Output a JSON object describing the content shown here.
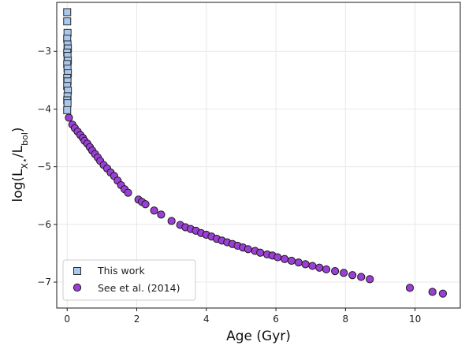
{
  "chart_data": {
    "type": "scatter",
    "xlabel": "Age (Gyr)",
    "ylabel": "log(L",
    "ylabel_sub1": "X⋆",
    "ylabel_mid": "/L",
    "ylabel_sub2": "bol",
    "ylabel_end": ")",
    "xlim": [
      -0.3,
      11.3
    ],
    "ylim": [
      -7.45,
      -2.15
    ],
    "xticks": [
      0,
      2,
      4,
      6,
      8,
      10
    ],
    "yticks": [
      -3,
      -4,
      -5,
      -6,
      -7
    ],
    "xtick_labels": [
      "0",
      "2",
      "4",
      "6",
      "8",
      "10"
    ],
    "ytick_labels": [
      "−3",
      "−4",
      "−5",
      "−6",
      "−7"
    ],
    "grid": true,
    "legend_position": "lower-left",
    "series": [
      {
        "name": "This work",
        "marker": "square",
        "color": "#a9c8ee",
        "edge_color": "#2a2a2a",
        "points": [
          [
            0.0,
            -2.32
          ],
          [
            0.0,
            -2.48
          ],
          [
            0.01,
            -2.68
          ],
          [
            0.0,
            -2.78
          ],
          [
            0.01,
            -2.88
          ],
          [
            0.02,
            -2.95
          ],
          [
            0.0,
            -3.02
          ],
          [
            0.01,
            -3.08
          ],
          [
            0.02,
            -3.16
          ],
          [
            0.0,
            -3.22
          ],
          [
            0.01,
            -3.3
          ],
          [
            0.02,
            -3.38
          ],
          [
            0.0,
            -3.46
          ],
          [
            0.01,
            -3.52
          ],
          [
            0.0,
            -3.6
          ],
          [
            0.02,
            -3.68
          ],
          [
            0.01,
            -3.78
          ],
          [
            0.0,
            -3.85
          ],
          [
            0.01,
            -3.9
          ],
          [
            0.0,
            -4.02
          ]
        ]
      },
      {
        "name": "See et al. (2014)",
        "marker": "circle",
        "color": "#9b3fd6",
        "edge_color": "#1a1a1a",
        "points": [
          [
            0.05,
            -4.15
          ],
          [
            0.15,
            -4.27
          ],
          [
            0.22,
            -4.33
          ],
          [
            0.3,
            -4.39
          ],
          [
            0.38,
            -4.45
          ],
          [
            0.45,
            -4.5
          ],
          [
            0.5,
            -4.55
          ],
          [
            0.58,
            -4.6
          ],
          [
            0.65,
            -4.66
          ],
          [
            0.72,
            -4.72
          ],
          [
            0.8,
            -4.78
          ],
          [
            0.88,
            -4.84
          ],
          [
            0.95,
            -4.9
          ],
          [
            1.05,
            -4.97
          ],
          [
            1.15,
            -5.03
          ],
          [
            1.25,
            -5.1
          ],
          [
            1.35,
            -5.16
          ],
          [
            1.45,
            -5.24
          ],
          [
            1.55,
            -5.32
          ],
          [
            1.65,
            -5.39
          ],
          [
            1.75,
            -5.45
          ],
          [
            2.05,
            -5.57
          ],
          [
            2.15,
            -5.61
          ],
          [
            2.25,
            -5.65
          ],
          [
            2.5,
            -5.76
          ],
          [
            2.7,
            -5.83
          ],
          [
            3.0,
            -5.94
          ],
          [
            3.25,
            -6.01
          ],
          [
            3.4,
            -6.05
          ],
          [
            3.55,
            -6.08
          ],
          [
            3.7,
            -6.11
          ],
          [
            3.85,
            -6.15
          ],
          [
            4.0,
            -6.18
          ],
          [
            4.15,
            -6.21
          ],
          [
            4.3,
            -6.25
          ],
          [
            4.45,
            -6.28
          ],
          [
            4.6,
            -6.31
          ],
          [
            4.75,
            -6.34
          ],
          [
            4.9,
            -6.37
          ],
          [
            5.05,
            -6.4
          ],
          [
            5.2,
            -6.43
          ],
          [
            5.4,
            -6.46
          ],
          [
            5.55,
            -6.49
          ],
          [
            5.75,
            -6.52
          ],
          [
            5.9,
            -6.54
          ],
          [
            6.05,
            -6.57
          ],
          [
            6.25,
            -6.6
          ],
          [
            6.45,
            -6.63
          ],
          [
            6.65,
            -6.66
          ],
          [
            6.85,
            -6.69
          ],
          [
            7.05,
            -6.72
          ],
          [
            7.25,
            -6.75
          ],
          [
            7.45,
            -6.78
          ],
          [
            7.7,
            -6.81
          ],
          [
            7.95,
            -6.84
          ],
          [
            8.2,
            -6.88
          ],
          [
            8.45,
            -6.91
          ],
          [
            8.7,
            -6.95
          ],
          [
            9.85,
            -7.1
          ],
          [
            10.5,
            -7.17
          ],
          [
            10.8,
            -7.2
          ]
        ]
      }
    ]
  }
}
